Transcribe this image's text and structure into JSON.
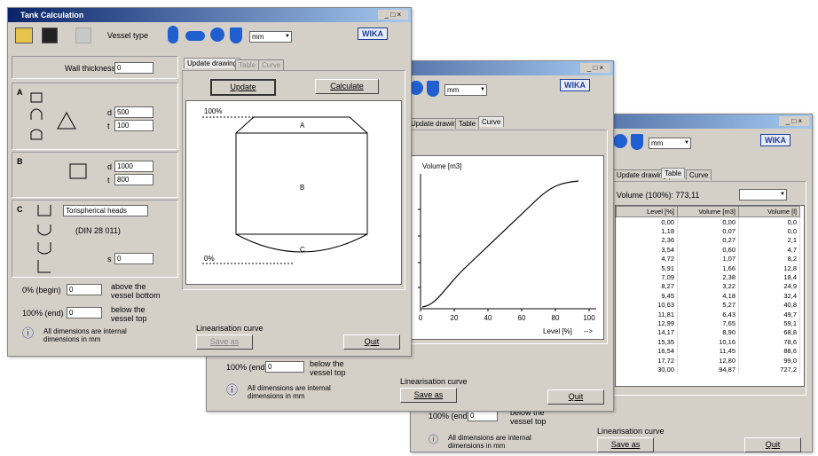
{
  "window1": {
    "title": "Tank Calculation",
    "vessel_type": "Vessel type",
    "unit": "mm",
    "logo": "WIKA",
    "wall_thickness_label": "Wall thickness",
    "wall_thickness": "0",
    "section_a": {
      "label": "A",
      "d_label": "d",
      "d": "500",
      "t_label": "t",
      "t": "100"
    },
    "section_b": {
      "label": "B",
      "d_label": "d",
      "d": "1000",
      "t_label": "t",
      "t": "800"
    },
    "section_c": {
      "label": "C",
      "head_type": "Torispherical heads",
      "standard": "(DIN 28 011)",
      "s_label": "s",
      "s": "0"
    },
    "begin_label": "0% (begin)",
    "begin": "0",
    "begin_note": "above the vessel bottom",
    "end_label": "100% (end)",
    "end": "0",
    "end_note": "below the vessel top",
    "info": "All dimensions are internal dimensions in mm",
    "tabs": [
      "Update drawing",
      "Table",
      "Curve"
    ],
    "update": "Update",
    "calculate": "Calculate",
    "drawing": {
      "top": "100%",
      "bottom": "0%",
      "a": "A",
      "b": "B",
      "c": "C"
    },
    "lin_label": "Linearisation curve",
    "save": "Save as",
    "quit": "Quit"
  },
  "window2": {
    "unit": "mm",
    "logo": "WIKA",
    "tabs": [
      "Update drawing",
      "Table",
      "Curve"
    ],
    "y_label": "Volume [m3]",
    "x_ticks": [
      "0",
      "20",
      "40",
      "60",
      "80",
      "100"
    ],
    "x_label": "Level [%]",
    "arrow": "-->",
    "end_label": "100% (end)",
    "end": "0",
    "end_note": "below the vessel top",
    "info": "All dimensions are internal dimensions in mm",
    "lin_label": "Linearisation curve",
    "save": "Save as",
    "quit": "Quit"
  },
  "window3": {
    "unit": "mm",
    "logo": "WIKA",
    "tabs": [
      "Update drawing",
      "Table",
      "Curve"
    ],
    "total": "Volume (100%): 773,11",
    "columns": [
      "Level [%]",
      "Volume [m3]",
      "Volume [l]"
    ],
    "rows": [
      [
        "0,00",
        "0,00",
        "0,0"
      ],
      [
        "1,18",
        "0,07",
        "0,0"
      ],
      [
        "2,36",
        "0,27",
        "2,1"
      ],
      [
        "3,54",
        "0,60",
        "4,7"
      ],
      [
        "4,72",
        "1,07",
        "8,2"
      ],
      [
        "5,91",
        "1,66",
        "12,8"
      ],
      [
        "7,09",
        "2,38",
        "18,4"
      ],
      [
        "8,27",
        "3,22",
        "24,9"
      ],
      [
        "9,45",
        "4,18",
        "32,4"
      ],
      [
        "10,63",
        "5,27",
        "40,8"
      ],
      [
        "11,81",
        "6,43",
        "49,7"
      ],
      [
        "12,99",
        "7,65",
        "59,1"
      ],
      [
        "14,17",
        "8,90",
        "68,8"
      ],
      [
        "15,35",
        "10,16",
        "78,6"
      ],
      [
        "16,54",
        "11,45",
        "88,6"
      ],
      [
        "17,72",
        "12,80",
        "99,0"
      ],
      [
        "30,00",
        "94,87",
        "727,2"
      ]
    ],
    "end_label": "100% (end)",
    "end": "0",
    "end_note": "below the vessel top",
    "info": "All dimensions are internal dimensions in mm",
    "lin_label": "Linearisation curve",
    "save": "Save as",
    "quit": "Quit"
  }
}
